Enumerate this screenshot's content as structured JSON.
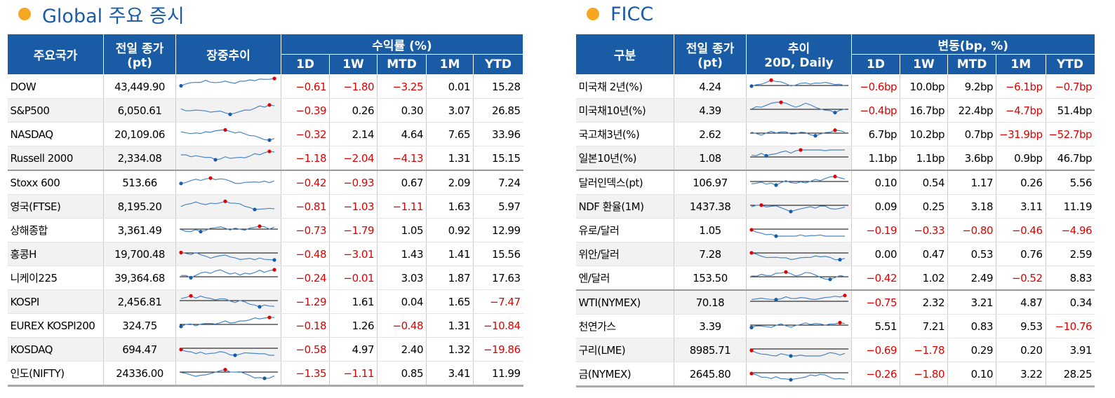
{
  "left": {
    "title": "Global 주요 증시",
    "header": {
      "country": "주요국가",
      "close": "전일 종가",
      "close_unit": "(pt)",
      "trend": "장중추이",
      "returns": "수익률 (%)",
      "cols": [
        "1D",
        "1W",
        "MTD",
        "1M",
        "YTD"
      ]
    },
    "groups": [
      [
        [
          "DOW",
          "43,449.90",
          "−0.61",
          "−1.80",
          "−3.25",
          "0.01",
          "15.28"
        ],
        [
          "S&P500",
          "6,050.61",
          "−0.39",
          "0.26",
          "0.30",
          "3.07",
          "26.85"
        ],
        [
          "NASDAQ",
          "20,109.06",
          "−0.32",
          "2.14",
          "4.64",
          "7.65",
          "33.96"
        ],
        [
          "Russell 2000",
          "2,334.08",
          "−1.18",
          "−2.04",
          "−4.13",
          "1.31",
          "15.15"
        ]
      ],
      [
        [
          "Stoxx 600",
          "513.66",
          "−0.42",
          "−0.93",
          "0.67",
          "2.09",
          "7.24"
        ],
        [
          "영국(FTSE)",
          "8,195.20",
          "−0.81",
          "−1.03",
          "−1.11",
          "1.63",
          "5.97"
        ],
        [
          "상해종합",
          "3,361.49",
          "−0.73",
          "−1.79",
          "1.05",
          "0.92",
          "12.99"
        ],
        [
          "홍콩H",
          "19,700.48",
          "−0.48",
          "−3.01",
          "1.43",
          "1.41",
          "15.56"
        ],
        [
          "니케이225",
          "39,364.68",
          "−0.24",
          "−0.01",
          "3.03",
          "1.87",
          "17.63"
        ],
        [
          "KOSPI",
          "2,456.81",
          "−1.29",
          "1.61",
          "0.04",
          "1.65",
          "−7.47"
        ],
        [
          "EUREX KOSPI200",
          "324.75",
          "−0.18",
          "1.26",
          "−0.48",
          "1.31",
          "−10.84"
        ],
        [
          "KOSDAQ",
          "694.47",
          "−0.58",
          "4.97",
          "2.40",
          "1.32",
          "−19.86"
        ],
        [
          "인도(NIFTY)",
          "24336.00",
          "−1.35",
          "−1.11",
          "0.85",
          "3.41",
          "11.99"
        ]
      ]
    ]
  },
  "right": {
    "title": "FICC",
    "header": {
      "country": "구분",
      "close": "전일 종가",
      "close_unit": "(pt)",
      "trend": "추이",
      "trend_sub": "20D, Daily",
      "returns": "변동(bp, %)",
      "cols": [
        "1D",
        "1W",
        "MTD",
        "1M",
        "YTD"
      ]
    },
    "groups": [
      [
        [
          "미국채 2년(%)",
          "4.24",
          "−0.6bp",
          "10.0bp",
          "9.2bp",
          "−6.1bp",
          "−0.7bp"
        ],
        [
          "미국채10년(%)",
          "4.39",
          "−0.4bp",
          "16.7bp",
          "22.4bp",
          "−4.7bp",
          "51.4bp"
        ],
        [
          "국고채3년(%)",
          "2.62",
          "6.7bp",
          "10.2bp",
          "0.7bp",
          "−31.9bp",
          "−52.7bp"
        ],
        [
          "일본10년(%)",
          "1.08",
          "1.1bp",
          "1.1bp",
          "3.6bp",
          "0.9bp",
          "46.7bp"
        ]
      ],
      [
        [
          "달러인덱스(pt)",
          "106.97",
          "0.10",
          "0.54",
          "1.17",
          "0.26",
          "5.56"
        ],
        [
          "NDF 환율(1M)",
          "1437.38",
          "0.09",
          "0.25",
          "3.18",
          "3.11",
          "11.19"
        ],
        [
          "유로/달러",
          "1.05",
          "−0.19",
          "−0.33",
          "−0.80",
          "−0.46",
          "−4.96"
        ],
        [
          "위안/달러",
          "7.28",
          "0.00",
          "0.47",
          "0.53",
          "0.76",
          "2.59"
        ],
        [
          "엔/달러",
          "153.50",
          "−0.42",
          "1.02",
          "2.49",
          "−0.52",
          "8.83"
        ]
      ],
      [
        [
          "WTI(NYMEX)",
          "70.18",
          "−0.75",
          "2.32",
          "3.21",
          "4.87",
          "0.34"
        ],
        [
          "천연가스",
          "3.39",
          "5.51",
          "7.21",
          "0.83",
          "9.53",
          "−10.76"
        ],
        [
          "구리(LME)",
          "8985.71",
          "−0.69",
          "−1.78",
          "0.29",
          "0.20",
          "3.91"
        ],
        [
          "금(NYMEX)",
          "2645.80",
          "−0.26",
          "−1.80",
          "0.10",
          "3.22",
          "28.25"
        ]
      ]
    ]
  }
}
